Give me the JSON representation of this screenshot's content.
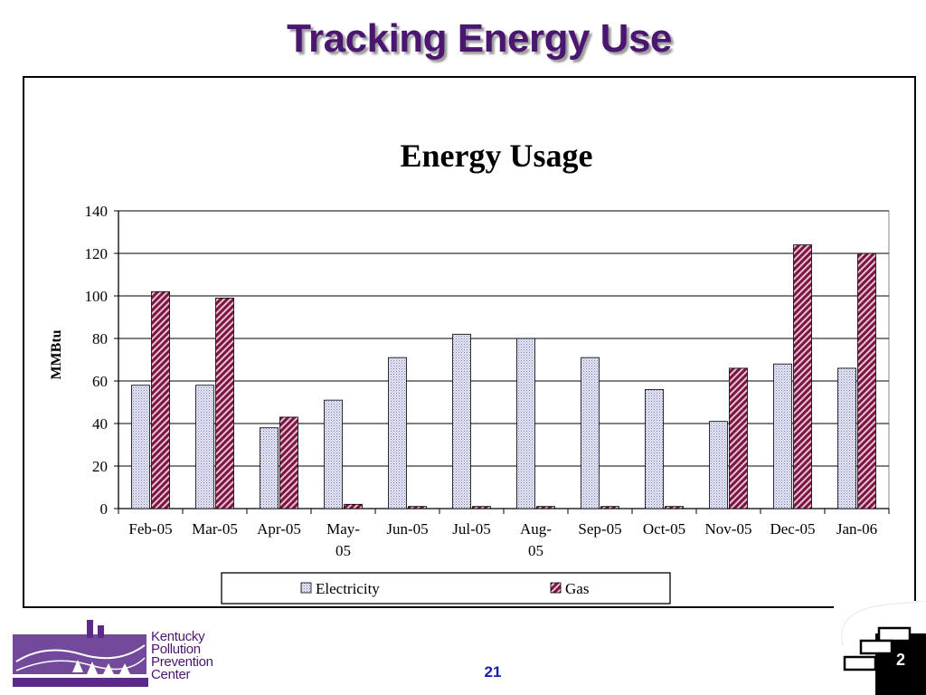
{
  "slide": {
    "title": "Tracking Energy Use",
    "page_number": "21",
    "badge_number": "2"
  },
  "logo": {
    "lines": [
      "Kentucky",
      "Pollution",
      "Prevention",
      "Center"
    ],
    "color": "#4b1670"
  },
  "colors": {
    "title": "#4b1670",
    "electricity": "#c8cbe6",
    "gas": "#8b1a4a",
    "page_number": "#1a1ab0"
  },
  "chart_data": {
    "type": "bar",
    "title": "Energy Usage",
    "xlabel": "",
    "ylabel": "MMBtu",
    "categories": [
      [
        "Feb-05"
      ],
      [
        "Mar-05"
      ],
      [
        "Apr-05"
      ],
      [
        "May-",
        "05"
      ],
      [
        "Jun-05"
      ],
      [
        "Jul-05"
      ],
      [
        "Aug-",
        "05"
      ],
      [
        "Sep-05"
      ],
      [
        "Oct-05"
      ],
      [
        "Nov-05"
      ],
      [
        "Dec-05"
      ],
      [
        "Jan-06"
      ]
    ],
    "series": [
      {
        "name": "Electricity",
        "values": [
          58,
          58,
          38,
          51,
          71,
          82,
          80,
          71,
          56,
          41,
          68,
          66
        ]
      },
      {
        "name": "Gas",
        "values": [
          102,
          99,
          43,
          2,
          1,
          1,
          1,
          1,
          1,
          66,
          124,
          120
        ]
      }
    ],
    "ylim": [
      0,
      140
    ],
    "yticks": [
      0,
      20,
      40,
      60,
      80,
      100,
      120,
      140
    ],
    "grid": true,
    "legend_position": "bottom"
  }
}
